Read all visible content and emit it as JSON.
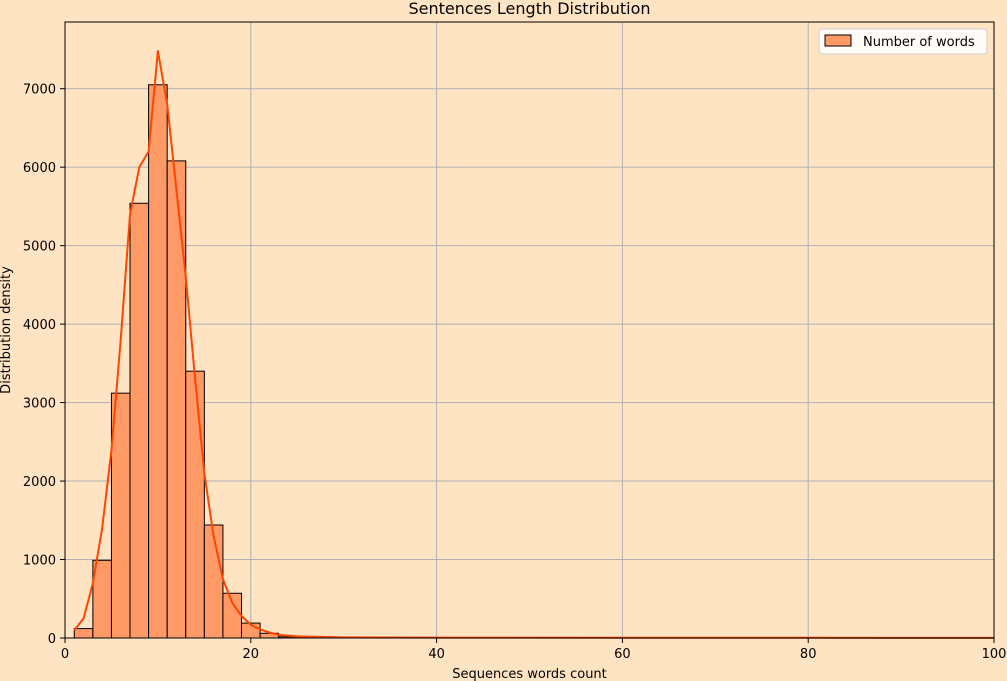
{
  "chart_data": {
    "type": "bar",
    "title": "Sentences Length Distribution",
    "xlabel": "Sequences words count",
    "ylabel": "Distribution density",
    "xlim": [
      0,
      100
    ],
    "ylim": [
      0,
      7850
    ],
    "x_ticks": [
      0,
      20,
      40,
      60,
      80,
      100
    ],
    "y_ticks": [
      0,
      1000,
      2000,
      3000,
      4000,
      5000,
      6000,
      7000
    ],
    "grid": true,
    "legend": {
      "placement": "top-right",
      "entries": [
        "Number of words"
      ]
    },
    "colors": {
      "background": "#ffe4c4",
      "bar_fill": "#ff9966",
      "bar_edge": "#000000",
      "kde_line": "#ff4500",
      "grid": "#b0b0b0"
    },
    "series": [
      {
        "name": "Number of words",
        "kind": "histogram",
        "bin_width": 2,
        "bins": [
          {
            "x0": 1,
            "x1": 3,
            "value": 120
          },
          {
            "x0": 3,
            "x1": 5,
            "value": 990
          },
          {
            "x0": 5,
            "x1": 7,
            "value": 3120
          },
          {
            "x0": 7,
            "x1": 9,
            "value": 5540
          },
          {
            "x0": 9,
            "x1": 11,
            "value": 7050
          },
          {
            "x0": 11,
            "x1": 13,
            "value": 6080
          },
          {
            "x0": 13,
            "x1": 15,
            "value": 3400
          },
          {
            "x0": 15,
            "x1": 17,
            "value": 1440
          },
          {
            "x0": 17,
            "x1": 19,
            "value": 570
          },
          {
            "x0": 19,
            "x1": 21,
            "value": 190
          },
          {
            "x0": 21,
            "x1": 23,
            "value": 60
          },
          {
            "x0": 23,
            "x1": 25,
            "value": 15
          },
          {
            "x0": 25,
            "x1": 27,
            "value": 8
          },
          {
            "x0": 27,
            "x1": 29,
            "value": 5
          },
          {
            "x0": 29,
            "x1": 31,
            "value": 3
          },
          {
            "x0": 31,
            "x1": 33,
            "value": 2
          }
        ]
      },
      {
        "kind": "kde",
        "x": [
          1,
          2,
          3,
          4,
          5,
          6,
          7,
          8,
          9,
          10,
          11,
          12,
          13,
          14,
          15,
          16,
          17,
          18,
          19,
          20,
          21,
          22,
          23,
          25,
          30,
          40,
          60,
          80,
          100
        ],
        "y": [
          100,
          250,
          700,
          1400,
          2400,
          3800,
          5400,
          6000,
          6200,
          7480,
          6800,
          5700,
          4600,
          3300,
          2100,
          1300,
          750,
          450,
          280,
          170,
          110,
          70,
          40,
          20,
          8,
          5,
          3,
          2,
          1
        ]
      }
    ]
  }
}
